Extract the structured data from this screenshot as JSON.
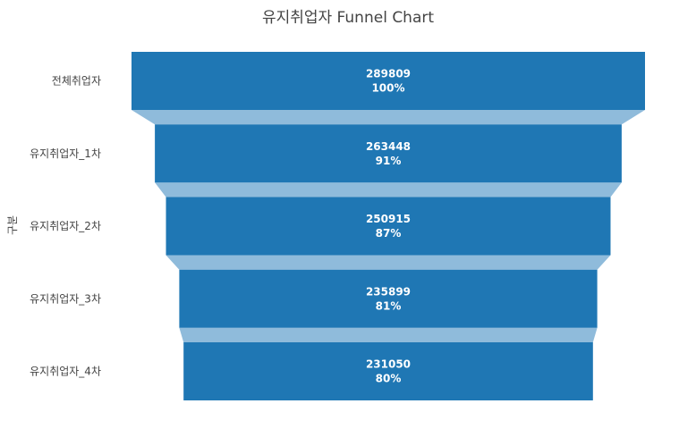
{
  "chart_data": {
    "type": "funnel",
    "title": "유지취업자 Funnel Chart",
    "ylabel": "구분",
    "categories": [
      "전체취업자",
      "유지취업자_1차",
      "유지취업자_2차",
      "유지취업자_3차",
      "유지취업자_4차"
    ],
    "values": [
      289809,
      263448,
      250915,
      235899,
      231050
    ],
    "percent_labels": [
      "100%",
      "91%",
      "87%",
      "81%",
      "80%"
    ],
    "colors": {
      "bar": "#1f77b4",
      "connector": "#8fbbdb"
    }
  }
}
